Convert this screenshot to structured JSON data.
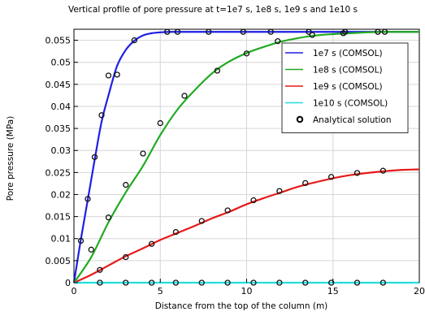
{
  "chart_data": {
    "type": "line",
    "title": "Vertical profile of pore pressure at t=1e7 s, 1e8 s, 1e9 s and 1e10 s",
    "xlabel": "Distance from the top of the column (m)",
    "ylabel": "Pore pressure (MPa)",
    "xlim": [
      0,
      20
    ],
    "ylim": [
      0,
      0.0575
    ],
    "x_ticks": [
      0,
      5,
      10,
      15,
      20
    ],
    "x_tick_labels": [
      "0",
      "5",
      "10",
      "15",
      "20"
    ],
    "y_ticks": [
      0,
      0.005,
      0.01,
      0.015,
      0.02,
      0.025,
      0.03,
      0.035,
      0.04,
      0.045,
      0.05,
      0.055
    ],
    "y_tick_labels": [
      "0",
      "0.005",
      "0.01",
      "0.015",
      "0.02",
      "0.025",
      "0.03",
      "0.035",
      "0.04",
      "0.045",
      "0.05",
      "0.055"
    ],
    "grid": true,
    "legend_position": "top-right",
    "series": [
      {
        "name": "1e7 s (COMSOL)",
        "color": "#1f1fe6",
        "x": [
          0,
          0.4,
          0.8,
          1.2,
          1.6,
          2.0,
          2.5,
          3.0,
          3.5,
          4.0,
          4.5,
          5.0,
          5.5,
          6.0,
          7.0,
          8.0,
          10.0,
          12.0,
          15.0,
          18.0,
          20.0
        ],
        "values": [
          0,
          0.0098,
          0.0188,
          0.0279,
          0.0365,
          0.0425,
          0.0492,
          0.0528,
          0.0549,
          0.0561,
          0.0566,
          0.0568,
          0.0569,
          0.0569,
          0.0569,
          0.0569,
          0.0569,
          0.0569,
          0.0569,
          0.0569,
          0.0569
        ]
      },
      {
        "name": "1e8 s (COMSOL)",
        "color": "#22aa22",
        "x": [
          0,
          1,
          2,
          3,
          4,
          5,
          6,
          7,
          8,
          9,
          10,
          11,
          12,
          13,
          14,
          15,
          16,
          17,
          18,
          19,
          20
        ],
        "values": [
          0,
          0.0058,
          0.0137,
          0.0205,
          0.0265,
          0.0335,
          0.0393,
          0.0437,
          0.0475,
          0.0502,
          0.0521,
          0.0535,
          0.0547,
          0.0555,
          0.0561,
          0.0564,
          0.0566,
          0.0568,
          0.0569,
          0.0569,
          0.0569
        ]
      },
      {
        "name": "1e9 s (COMSOL)",
        "color": "#e61a1a",
        "x": [
          0,
          1,
          2,
          3,
          4,
          5,
          6,
          7,
          8,
          9,
          10,
          11,
          12,
          13,
          14,
          15,
          16,
          17,
          18,
          19,
          20
        ],
        "values": [
          0,
          0.0018,
          0.0039,
          0.006,
          0.0078,
          0.0097,
          0.0113,
          0.0129,
          0.0146,
          0.0161,
          0.0178,
          0.0192,
          0.0205,
          0.0218,
          0.0228,
          0.0237,
          0.0244,
          0.0249,
          0.0253,
          0.0256,
          0.0257
        ]
      },
      {
        "name": "1e10 s (COMSOL)",
        "color": "#22dddd",
        "x": [
          0,
          5,
          10,
          15,
          20
        ],
        "values": [
          0,
          0,
          0,
          0,
          0
        ]
      }
    ],
    "analytical": {
      "name": "Analytical solution",
      "marker": "open-circle",
      "sets": [
        {
          "x": [
            0.4,
            0.8,
            1.2,
            1.6,
            2.0,
            2.5,
            3.5,
            5.4,
            6.0,
            7.8,
            9.8,
            11.4,
            13.6,
            15.7,
            18.0
          ],
          "values": [
            0.0095,
            0.019,
            0.0285,
            0.038,
            0.047,
            0.0472,
            0.055,
            0.0569,
            0.0569,
            0.0569,
            0.0569,
            0.0569,
            0.0569,
            0.0569,
            0.0569
          ]
        },
        {
          "x": [
            1.0,
            2.0,
            3.0,
            4.0,
            5.0,
            6.4,
            8.3,
            10.0,
            11.8,
            13.8,
            15.6,
            17.6
          ],
          "values": [
            0.0075,
            0.0148,
            0.0222,
            0.0293,
            0.0362,
            0.0424,
            0.0481,
            0.052,
            0.0548,
            0.0562,
            0.0566,
            0.0569
          ]
        },
        {
          "x": [
            1.5,
            3.0,
            4.5,
            5.9,
            7.4,
            8.9,
            10.4,
            11.9,
            13.4,
            14.9,
            16.4,
            17.9
          ],
          "values": [
            0.0029,
            0.0058,
            0.0088,
            0.0115,
            0.014,
            0.0164,
            0.0187,
            0.0208,
            0.0226,
            0.024,
            0.0249,
            0.0254
          ]
        },
        {
          "x": [
            1.5,
            3.0,
            4.5,
            5.9,
            7.4,
            8.9,
            10.4,
            11.9,
            13.4,
            14.9,
            16.4,
            17.9
          ],
          "values": [
            0,
            0,
            0,
            0,
            0,
            0,
            0,
            0,
            0,
            0,
            0,
            0
          ]
        }
      ]
    }
  }
}
